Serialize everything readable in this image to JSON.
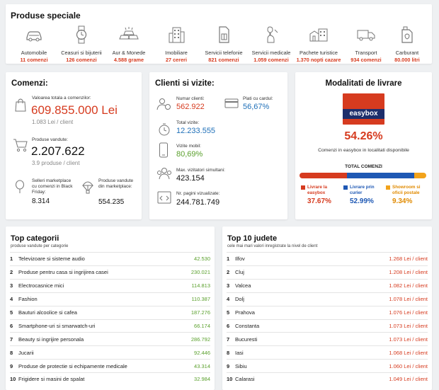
{
  "special": {
    "title": "Produse speciale",
    "items": [
      {
        "label": "Automobile",
        "value": "11 comenzi",
        "icon": "car-icon"
      },
      {
        "label": "Ceasuri si bijuterii",
        "value": "126 comenzi",
        "icon": "watch-icon"
      },
      {
        "label": "Aur & Monede",
        "value": "4.588 grame",
        "icon": "gold-bars-icon"
      },
      {
        "label": "Imobiliare",
        "value": "27 cereri",
        "icon": "building-icon"
      },
      {
        "label": "Servicii telefonie",
        "value": "821 comenzi",
        "icon": "sim-card-icon"
      },
      {
        "label": "Servicii medicale",
        "value": "1.059 comenzi",
        "icon": "medical-icon"
      },
      {
        "label": "Pachete turistice",
        "value": "1.370 nopti cazare",
        "icon": "hotel-icon"
      },
      {
        "label": "Transport",
        "value": "934 comenzi",
        "icon": "truck-icon"
      },
      {
        "label": "Carburant",
        "value": "80.000 litri",
        "icon": "fuel-can-icon"
      }
    ]
  },
  "orders": {
    "title": "Comenzi:",
    "total_label": "Valoarea totala a comenzilor:",
    "total_value": "609.855.000 Lei",
    "per_client": "1.083 Lei / client",
    "sold_label": "Produse vandute:",
    "sold_value": "2.207.622",
    "sold_per_client": "3.9 produse / client",
    "sellers_label": "Selleri marketplace cu comenzi in Black Friday:",
    "sellers_value": "8.314",
    "mp_label": "Produse vandute din marketplace:",
    "mp_value": "554.235"
  },
  "clients": {
    "title": "Clienti si vizite:",
    "num_clients_label": "Numar clienti:",
    "num_clients": "562.922",
    "card_label": "Plati cu cardul:",
    "card_value": "56,67%",
    "visits_label": "Total vizite:",
    "visits": "12.233.555",
    "mobile_label": "Vizite mobil:",
    "mobile": "80,69%",
    "max_label": "Max. vizitatori simultani:",
    "max": "423.154",
    "pages_label": "Nr. pagini vizualizate:",
    "pages": "244.781.749"
  },
  "delivery": {
    "title": "Modalitati de livrare",
    "logo": "easybox",
    "percent": "54.26%",
    "caption": "Comenzi in easybox in localitati disponibile",
    "bar_title": "TOTAL COMENZI",
    "segments": [
      {
        "label": "Livrare la easybox",
        "value": "37.67%",
        "color": "#d63b1f",
        "share": 37.67
      },
      {
        "label": "Livrare prin curier",
        "value": "52.99%",
        "color": "#1e58b4",
        "share": 52.99
      },
      {
        "label": "Showroom si oficii postale",
        "value": "9.34%",
        "color": "#f2a31b",
        "share": 9.34
      }
    ]
  },
  "categories": {
    "title": "Top categorii",
    "subtitle": "produse vandute per categorie",
    "rows": [
      {
        "n": "1",
        "label": "Televizoare si sisteme audio",
        "value": "42.530"
      },
      {
        "n": "2",
        "label": "Produse pentru casa si ingrijirea casei",
        "value": "230.021"
      },
      {
        "n": "3",
        "label": "Electrocasnice mici",
        "value": "114.813"
      },
      {
        "n": "4",
        "label": "Fashion",
        "value": "110.387"
      },
      {
        "n": "5",
        "label": "Bauturi alcoolice si cafea",
        "value": "187.276"
      },
      {
        "n": "6",
        "label": "Smartphone-uri si smarwatch-uri",
        "value": "66.174"
      },
      {
        "n": "7",
        "label": "Beauty si ingrijire personala",
        "value": "286.792"
      },
      {
        "n": "8",
        "label": "Jucarii",
        "value": "92.446"
      },
      {
        "n": "9",
        "label": "Produse de protectie si echipamente medicale",
        "value": "43.314"
      },
      {
        "n": "10",
        "label": "Frigidere si masini de spalat",
        "value": "32.984"
      }
    ]
  },
  "judete": {
    "title": "Top 10 judete",
    "subtitle": "cele mai mari valori inregistrate la nivel de client",
    "rows": [
      {
        "n": "1",
        "label": "Ilfov",
        "value": "1.268 Lei / client"
      },
      {
        "n": "2",
        "label": "Cluj",
        "value": "1.208 Lei / client"
      },
      {
        "n": "3",
        "label": "Valcea",
        "value": "1.082 Lei / client"
      },
      {
        "n": "4",
        "label": "Dolj",
        "value": "1.078 Lei / client"
      },
      {
        "n": "5",
        "label": "Prahova",
        "value": "1.076 Lei / client"
      },
      {
        "n": "6",
        "label": "Constanta",
        "value": "1.073 Lei / client"
      },
      {
        "n": "7",
        "label": "Bucuresti",
        "value": "1.073 Lei / client"
      },
      {
        "n": "8",
        "label": "Iasi",
        "value": "1.068 Lei / client"
      },
      {
        "n": "9",
        "label": "Sibiu",
        "value": "1.060 Lei / client"
      },
      {
        "n": "10",
        "label": "Calarasi",
        "value": "1.049 Lei / client"
      }
    ]
  }
}
